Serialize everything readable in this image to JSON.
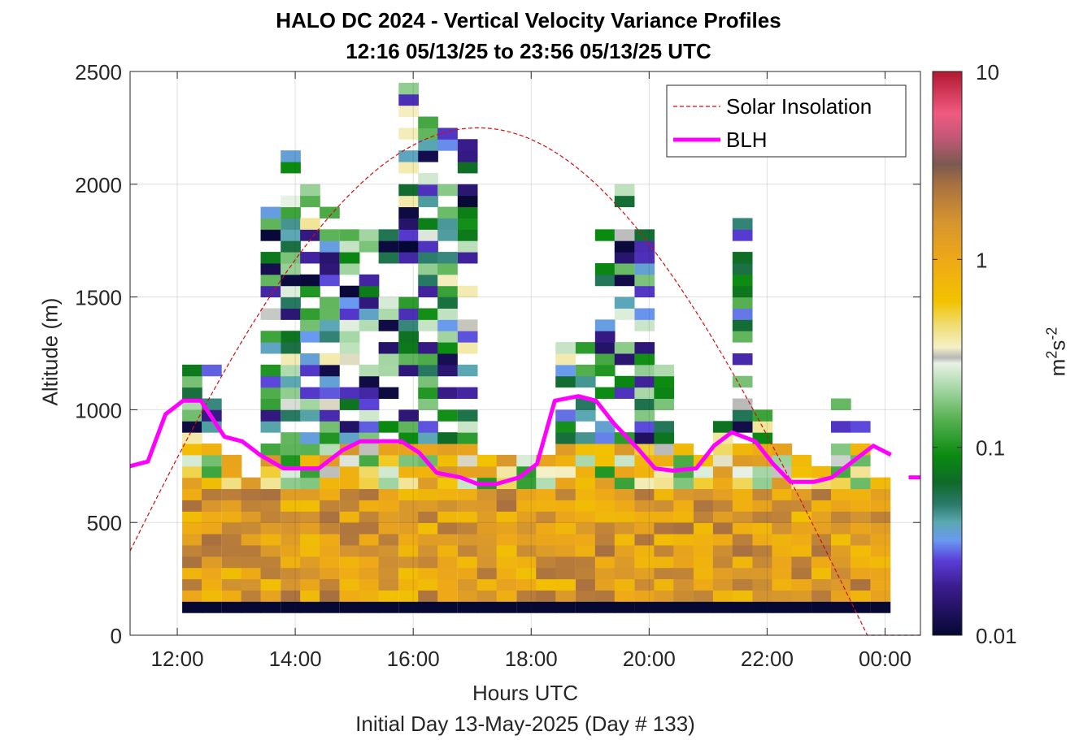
{
  "chart_data": {
    "type": "heatmap",
    "title": "HALO DC 2024 - Vertical Velocity Variance Profiles",
    "subtitle": "12:16 05/13/25 to 23:56 05/13/25  UTC",
    "xlabel": "Hours UTC",
    "ylabel": "Altitude (m)",
    "note": "Initial Day 13-May-2025 (Day # 133)",
    "x_tick_labels": [
      "12:00",
      "14:00",
      "16:00",
      "18:00",
      "20:00",
      "22:00",
      "00:00"
    ],
    "x_tick_hours": [
      12,
      14,
      16,
      18,
      20,
      22,
      24
    ],
    "xlim_hours": [
      11.2,
      24.6
    ],
    "y_ticks": [
      0,
      500,
      1000,
      1500,
      2000,
      2500
    ],
    "ylim": [
      0,
      2500
    ],
    "grid": true,
    "colorbar": {
      "label": "m²s⁻²",
      "scale": "log",
      "range": [
        0.01,
        10
      ],
      "tick_labels": [
        "0.01",
        "0.1",
        "1",
        "10"
      ],
      "tick_values": [
        0.01,
        0.1,
        1,
        10
      ],
      "colormap_anchors": [
        [
          0.01,
          "#050833"
        ],
        [
          0.018,
          "#3a1c8c"
        ],
        [
          0.025,
          "#5a3ed8"
        ],
        [
          0.032,
          "#6a9af0"
        ],
        [
          0.04,
          "#5aa8b0"
        ],
        [
          0.05,
          "#2a7a68"
        ],
        [
          0.065,
          "#0f6a28"
        ],
        [
          0.09,
          "#0a8a10"
        ],
        [
          0.14,
          "#55b050"
        ],
        [
          0.2,
          "#a0d4a0"
        ],
        [
          0.28,
          "#e8f2e6"
        ],
        [
          0.3,
          "#b8b8b8"
        ],
        [
          0.34,
          "#f4f0c8"
        ],
        [
          0.45,
          "#f0dc70"
        ],
        [
          0.6,
          "#f2c200"
        ],
        [
          1.0,
          "#eea818"
        ],
        [
          1.6,
          "#d49430"
        ],
        [
          2.5,
          "#a87040"
        ],
        [
          3.2,
          "#7a5a50"
        ],
        [
          4.5,
          "#c45878"
        ],
        [
          6.0,
          "#f05a80"
        ],
        [
          10.0,
          "#b01830"
        ]
      ]
    },
    "time_bins_hours": [
      12.25,
      12.58,
      12.92,
      13.25,
      13.58,
      13.92,
      14.25,
      14.58,
      14.92,
      15.25,
      15.58,
      15.92,
      16.25,
      16.58,
      16.92,
      17.25,
      17.58,
      17.92,
      18.25,
      18.58,
      18.92,
      19.25,
      19.58,
      19.92,
      20.25,
      20.58,
      20.92,
      21.25,
      21.58,
      21.92,
      22.25,
      22.58,
      22.92,
      23.25,
      23.58,
      23.92
    ],
    "range_gate_m": 50,
    "profile_top_m": [
      1200,
      1200,
      800,
      700,
      1900,
      2150,
      2000,
      1950,
      1800,
      1800,
      1800,
      2450,
      2300,
      2250,
      2250,
      800,
      800,
      800,
      800,
      1300,
      1300,
      1800,
      2100,
      1800,
      1200,
      850,
      800,
      1000,
      1850,
      1000,
      850,
      800,
      750,
      1050,
      950,
      700
    ],
    "surface_row_value": 0.01,
    "series": [
      {
        "name": "Solar Insolation",
        "style": "dashed",
        "color": "#d01010",
        "peak_hour": 17.1,
        "half_width_hours": 6.6,
        "peak_altitude_m": 2250
      },
      {
        "name": "BLH",
        "color": "#ff00ff",
        "x_hours": [
          11.2,
          11.5,
          11.8,
          12.1,
          12.4,
          12.8,
          13.1,
          13.4,
          13.8,
          14.1,
          14.4,
          14.8,
          15.1,
          15.5,
          15.8,
          16.1,
          16.4,
          16.8,
          17.1,
          17.4,
          17.8,
          18.1,
          18.4,
          18.8,
          19.1,
          19.4,
          19.8,
          20.1,
          20.4,
          20.8,
          21.1,
          21.4,
          21.8,
          22.1,
          22.4,
          22.8,
          23.1,
          23.4,
          23.8,
          24.1
        ],
        "y_m": [
          750,
          770,
          980,
          1040,
          1040,
          880,
          860,
          800,
          740,
          740,
          740,
          820,
          860,
          860,
          860,
          810,
          720,
          700,
          670,
          670,
          700,
          760,
          1040,
          1060,
          1040,
          940,
          830,
          740,
          730,
          740,
          840,
          900,
          860,
          760,
          680,
          680,
          700,
          760,
          840,
          800
        ]
      },
      {
        "name": "BLH",
        "values_after_gap": {
          "x_hours": [
            24.4,
            24.6
          ],
          "y_m": [
            700,
            700
          ]
        }
      }
    ],
    "legend": {
      "placement": "top-right",
      "entries": [
        "Solar Insolation",
        "BLH"
      ]
    }
  }
}
